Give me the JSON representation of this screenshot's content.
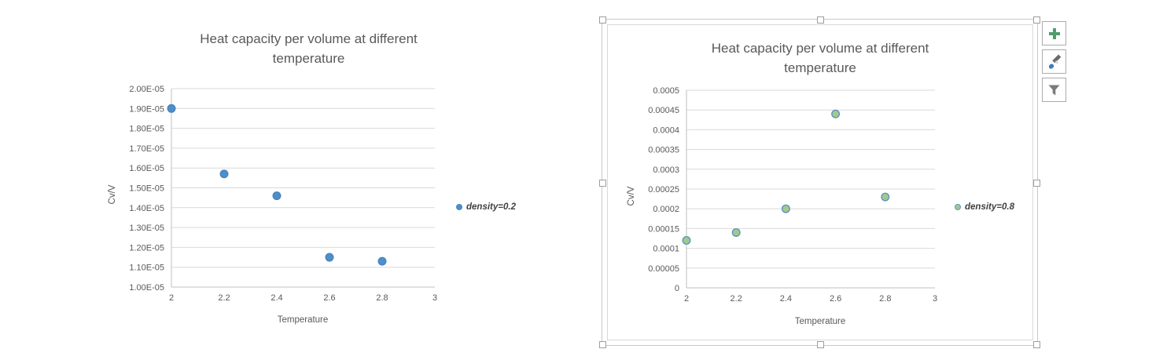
{
  "colors": {
    "gridline": "#D9D9D9",
    "axis": "#BFBFBF",
    "tick_text": "#595959",
    "title_text": "#595959",
    "legend_text": "#404040",
    "blue_marker": "#4E8ECB",
    "green_marker_fill": "#A3C987",
    "green_marker_stroke": "#5E94C6"
  },
  "chart_data": [
    {
      "type": "scatter",
      "title": "Heat capacity per volume at different temperature",
      "xlabel": "Temperature",
      "ylabel": "Cv/V",
      "legend": "density=0.2",
      "legend_position": "right",
      "grid": true,
      "x": [
        2,
        2.2,
        2.4,
        2.6,
        2.8
      ],
      "y": [
        1.9e-05,
        1.57e-05,
        1.46e-05,
        1.15e-05,
        1.13e-05
      ],
      "xlim": [
        2,
        3
      ],
      "ylim": [
        1e-05,
        2e-05
      ],
      "x_tick_labels": [
        "2",
        "2.2",
        "2.4",
        "2.6",
        "2.8",
        "3"
      ],
      "y_tick_labels": [
        "2.00E-05",
        "1.90E-05",
        "1.80E-05",
        "1.70E-05",
        "1.60E-05",
        "1.50E-05",
        "1.40E-05",
        "1.30E-05",
        "1.20E-05",
        "1.10E-05",
        "1.00E-05"
      ],
      "marker": {
        "fill": "#4E8ECB",
        "stroke": "#4784BE"
      },
      "selected": false
    },
    {
      "type": "scatter",
      "title": "Heat capacity per volume at different temperature",
      "xlabel": "Temperature",
      "ylabel": "Cv/V",
      "legend": "density=0.8",
      "legend_position": "right",
      "grid": true,
      "x": [
        2,
        2.2,
        2.4,
        2.6,
        2.8
      ],
      "y": [
        0.00012,
        0.00014,
        0.0002,
        0.00044,
        0.00023
      ],
      "xlim": [
        2,
        3
      ],
      "ylim": [
        0,
        0.0005
      ],
      "x_tick_labels": [
        "2",
        "2.2",
        "2.4",
        "2.6",
        "2.8",
        "3"
      ],
      "y_tick_labels": [
        "0.0005",
        "0.00045",
        "0.0004",
        "0.00035",
        "0.0003",
        "0.00025",
        "0.0002",
        "0.00015",
        "0.0001",
        "0.00005",
        "0"
      ],
      "marker": {
        "fill": "#A3C987",
        "stroke": "#5E94C6"
      },
      "selected": true
    }
  ],
  "chart_tools": {
    "buttons": [
      {
        "name": "chart-elements",
        "icon": "plus-icon"
      },
      {
        "name": "chart-styles",
        "icon": "paintbrush-icon"
      },
      {
        "name": "chart-filters",
        "icon": "funnel-icon"
      }
    ]
  }
}
